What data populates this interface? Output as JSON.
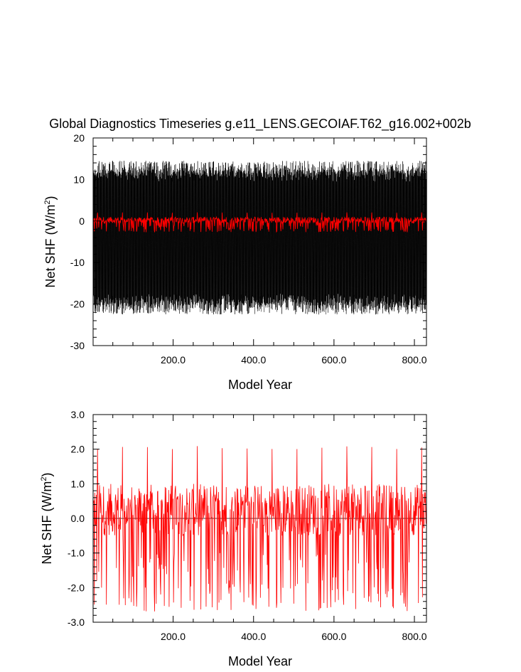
{
  "chart_data": [
    {
      "type": "line",
      "title": "Global Diagnostics Timeseries g.e11_LENS.GECOIAF.T62_g16.002+002b",
      "xlabel": "Model Year",
      "ylabel_main": "Net SHF (W/m",
      "ylabel_sup": "2",
      "ylabel_close": ")",
      "xlim": [
        1,
        830
      ],
      "ylim": [
        -30,
        20
      ],
      "xticks": [
        200,
        400,
        600,
        800
      ],
      "xtick_labels": [
        "200.0",
        "400.0",
        "600.0",
        "800.0"
      ],
      "yticks": [
        -30,
        -20,
        -10,
        0,
        10,
        20
      ],
      "ytick_labels": [
        "-30",
        "-20",
        "-10",
        "0",
        "10",
        "20"
      ],
      "series": [
        {
          "color": "#000000",
          "kind": "monthly",
          "approx_min": -23.5,
          "approx_max": 16,
          "typical_low": -20,
          "typical_high": 12
        },
        {
          "color": "#ff0000",
          "kind": "annual",
          "approx_min": -2.7,
          "approx_max": 2.1,
          "typical_low": -0.5,
          "typical_high": 1.0
        }
      ]
    },
    {
      "type": "line",
      "title": "",
      "xlabel": "Model Year",
      "ylabel_main": "Net SHF (W/m",
      "ylabel_sup": "2",
      "ylabel_close": ")",
      "xlim": [
        1,
        830
      ],
      "ylim": [
        -3,
        3
      ],
      "xticks": [
        200,
        400,
        600,
        800
      ],
      "xtick_labels": [
        "200.0",
        "400.0",
        "600.0",
        "800.0"
      ],
      "yticks": [
        -3,
        -2,
        -1,
        0,
        1,
        2,
        3
      ],
      "ytick_labels": [
        "-3.0",
        "-2.0",
        "-1.0",
        "0.0",
        "1.0",
        "2.0",
        "3.0"
      ],
      "reference_line": 0,
      "series": [
        {
          "color": "#ff0000",
          "kind": "annual",
          "approx_min": -2.7,
          "approx_max": 2.1,
          "typical_low": -0.5,
          "typical_high": 1.0,
          "cycle_years": 62
        }
      ]
    }
  ]
}
